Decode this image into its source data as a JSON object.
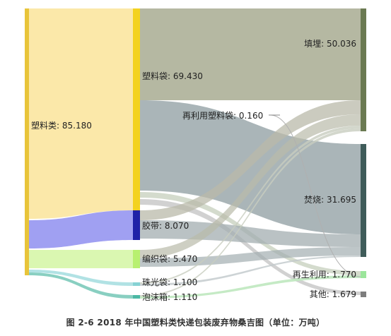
{
  "caption": "图 2-6 2018 年中国塑料类快递包装废弃物桑吉图（单位：万吨）",
  "chart_data": {
    "type": "sankey",
    "unit": "万吨",
    "nodes": [
      {
        "id": "total",
        "label": "塑料类: 85.180",
        "value": 85.18,
        "color": "#e8c43a"
      },
      {
        "id": "bag",
        "label": "塑料袋: 69.430",
        "value": 69.43,
        "color": "#f3d21f"
      },
      {
        "id": "tape",
        "label": "胶带: 8.070",
        "value": 8.07,
        "color": "#1f22a8"
      },
      {
        "id": "woven",
        "label": "编织袋: 5.470",
        "value": 5.47,
        "color": "#b8f070"
      },
      {
        "id": "bubble",
        "label": "珠光袋: 1.100",
        "value": 1.1,
        "color": "#86d2d4"
      },
      {
        "id": "foam",
        "label": "泡沫箱: 1.110",
        "value": 1.11,
        "color": "#4cb8a4"
      },
      {
        "id": "reuse_bag",
        "label": "再利用塑料袋: 0.160",
        "value": 0.16,
        "color": "#cfcfcf"
      },
      {
        "id": "landfill",
        "label": "填埋: 50.036",
        "value": 50.036,
        "color": "#6b7a52"
      },
      {
        "id": "incinerate",
        "label": "焚烧: 31.695",
        "value": 31.695,
        "color": "#3f5c5a"
      },
      {
        "id": "recycle",
        "label": "再生利用: 1.770",
        "value": 1.77,
        "color": "#9be59b"
      },
      {
        "id": "other",
        "label": "其他: 1.679",
        "value": 1.679,
        "color": "#7d7d7d"
      }
    ]
  }
}
